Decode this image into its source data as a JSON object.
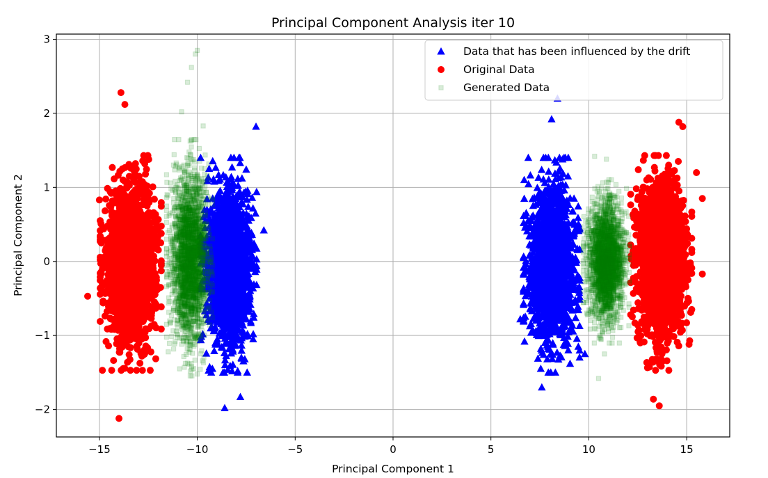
{
  "chart_data": {
    "type": "scatter",
    "title": "Principal Component Analysis iter 10",
    "xlabel": "Principal Component 1",
    "ylabel": "Principal Component 2",
    "xlim": [
      -17.2,
      17.2
    ],
    "ylim": [
      -2.37,
      3.07
    ],
    "xticks": [
      -15,
      -10,
      -5,
      0,
      5,
      10,
      15
    ],
    "xtick_labels": [
      "−15",
      "−10",
      "−5",
      "0",
      "5",
      "10",
      "15"
    ],
    "yticks": [
      -2,
      -1,
      0,
      1,
      2,
      3
    ],
    "ytick_labels": [
      "−2",
      "−1",
      "0",
      "1",
      "2",
      "3"
    ],
    "grid": true,
    "legend_position": "top-right",
    "series": [
      {
        "name": "Data that has been influenced by the drift",
        "marker": "triangle",
        "color": "#0000ff",
        "alpha": 1.0,
        "clusters": [
          {
            "x_center": -8.4,
            "x_spread": 0.55,
            "y_center": -0.05,
            "y_spread": 0.5
          },
          {
            "x_center": 8.1,
            "x_spread": 0.55,
            "y_center": -0.05,
            "y_spread": 0.5
          }
        ],
        "extreme_points": [
          {
            "x": 8.4,
            "y": 2.2
          },
          {
            "x": 8.1,
            "y": 1.92
          },
          {
            "x": -7.0,
            "y": 1.82
          },
          {
            "x": -8.6,
            "y": -1.98
          },
          {
            "x": -7.8,
            "y": -1.83
          },
          {
            "x": 7.6,
            "y": -1.7
          },
          {
            "x": 6.5,
            "y": -0.78
          },
          {
            "x": -6.6,
            "y": 0.42
          },
          {
            "x": 6.7,
            "y": 1.1
          },
          {
            "x": 9.8,
            "y": -1.25
          }
        ]
      },
      {
        "name": "Original Data",
        "marker": "circle",
        "color": "#ff0000",
        "alpha": 1.0,
        "clusters": [
          {
            "x_center": -13.4,
            "x_spread": 0.6,
            "y_center": -0.02,
            "y_spread": 0.5
          },
          {
            "x_center": 13.7,
            "x_spread": 0.6,
            "y_center": -0.02,
            "y_spread": 0.5
          }
        ],
        "extreme_points": [
          {
            "x": -13.9,
            "y": 2.28
          },
          {
            "x": -13.7,
            "y": 2.12
          },
          {
            "x": -14.0,
            "y": -2.12
          },
          {
            "x": -15.6,
            "y": -0.47
          },
          {
            "x": -15.0,
            "y": 0.83
          },
          {
            "x": 14.6,
            "y": 1.88
          },
          {
            "x": 14.8,
            "y": 1.82
          },
          {
            "x": 13.6,
            "y": -1.95
          },
          {
            "x": 13.3,
            "y": -1.86
          },
          {
            "x": 15.8,
            "y": -0.17
          },
          {
            "x": 15.8,
            "y": 0.85
          },
          {
            "x": 15.5,
            "y": 1.2
          }
        ]
      },
      {
        "name": "Generated Data",
        "marker": "square",
        "color": "#008000",
        "alpha": 0.15,
        "clusters": [
          {
            "x_center": -10.4,
            "x_spread": 0.45,
            "y_center": 0.05,
            "y_spread": 0.55
          },
          {
            "x_center": 10.9,
            "x_spread": 0.45,
            "y_center": 0.0,
            "y_spread": 0.38
          }
        ],
        "extreme_points": [
          {
            "x": -10.0,
            "y": 2.85
          },
          {
            "x": -10.1,
            "y": 2.8
          },
          {
            "x": -10.3,
            "y": 2.62
          },
          {
            "x": -10.5,
            "y": 2.42
          },
          {
            "x": -10.8,
            "y": 2.02
          },
          {
            "x": -9.7,
            "y": 1.83
          },
          {
            "x": -10.9,
            "y": -1.45
          },
          {
            "x": -10.0,
            "y": -1.52
          },
          {
            "x": 10.3,
            "y": 1.42
          },
          {
            "x": 10.9,
            "y": 1.38
          },
          {
            "x": 10.5,
            "y": -1.58
          },
          {
            "x": 10.8,
            "y": -1.25
          }
        ]
      }
    ]
  }
}
